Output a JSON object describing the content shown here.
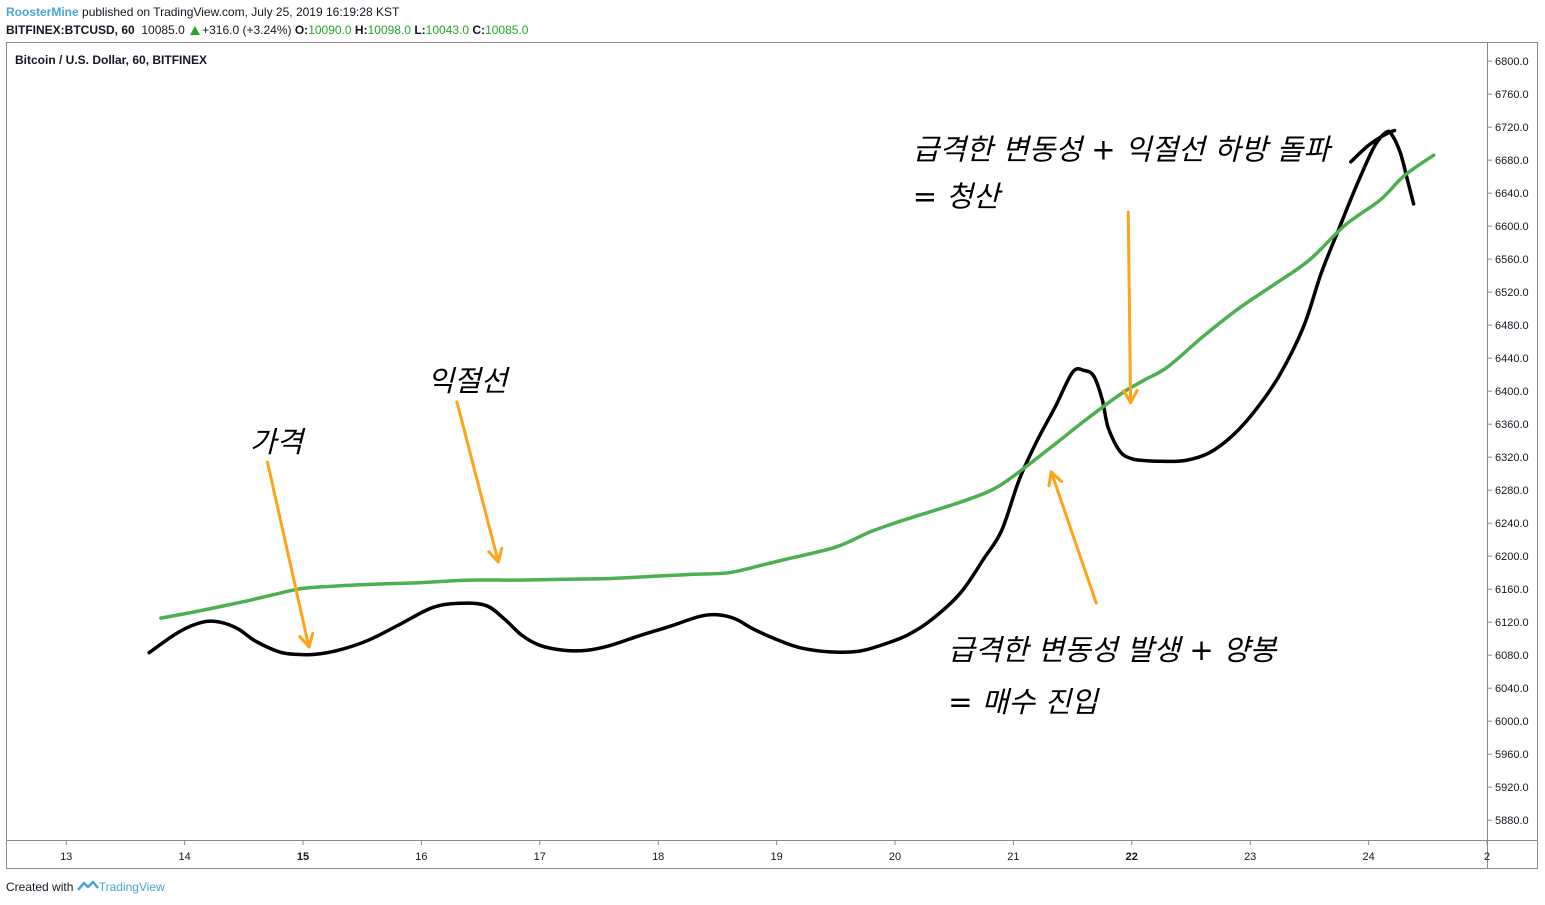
{
  "header": {
    "author": "RoosterMine",
    "published": "published on TradingView.com, July 25, 2019 16:19:28 KST",
    "symbol": "BITFINEX:BTCUSD, 60",
    "last": "10085.0",
    "change": "+316.0 (+3.24%)",
    "o_label": "O:",
    "o_value": "10090.0",
    "h_label": "H:",
    "h_value": "10098.0",
    "l_label": "L:",
    "l_value": "10043.0",
    "c_label": "C:",
    "c_value": "10085.0"
  },
  "chart_title": "Bitcoin / U.S. Dollar, 60, BITFINEX",
  "footer": {
    "created_with": "Created with",
    "brand": "TradingView"
  },
  "colors": {
    "price_line": "#000000",
    "profit_line": "#4caf50",
    "arrow": "#ffa31a",
    "axis_text": "#131722"
  },
  "chart_data": {
    "type": "line",
    "xlabel": "",
    "ylabel": "",
    "x_ticks": [
      "13",
      "14",
      "15",
      "16",
      "17",
      "18",
      "19",
      "20",
      "21",
      "22",
      "23",
      "24",
      "2"
    ],
    "x_ticks_bold": [
      "15",
      "22"
    ],
    "y_ticks": [
      "6800.0",
      "6760.0",
      "6720.0",
      "6680.0",
      "6640.0",
      "6600.0",
      "6560.0",
      "6520.0",
      "6480.0",
      "6440.0",
      "6400.0",
      "6360.0",
      "6320.0",
      "6280.0",
      "6240.0",
      "6200.0",
      "6160.0",
      "6120.0",
      "6080.0",
      "6040.0",
      "6000.0",
      "5960.0",
      "5920.0",
      "5880.0"
    ],
    "xlim": [
      12.5,
      25.0
    ],
    "ylim": [
      5856,
      6822
    ],
    "series": [
      {
        "name": "",
        "color": "#000000",
        "x": [
          13.7,
          13.95,
          14.15,
          14.3,
          14.45,
          14.6,
          14.8,
          14.95,
          15.1,
          15.3,
          15.55,
          15.8,
          16.1,
          16.35,
          16.55,
          16.7,
          16.85,
          17.0,
          17.2,
          17.4,
          17.6,
          17.85,
          18.1,
          18.35,
          18.5,
          18.65,
          18.8,
          19.0,
          19.2,
          19.45,
          19.7,
          19.9,
          20.1,
          20.3,
          20.55,
          20.75,
          20.9,
          21.05,
          21.2,
          21.35,
          21.5,
          21.6,
          21.68,
          21.75,
          21.8,
          21.9,
          22.0,
          22.1,
          22.25,
          22.45,
          22.65,
          22.85,
          23.05,
          23.25,
          23.45,
          23.6,
          23.75,
          23.9,
          24.05,
          24.15,
          24.2,
          24.27,
          24.33,
          24.38
        ],
        "y": [
          6083,
          6108,
          6120,
          6120,
          6112,
          6097,
          6084,
          6081,
          6081,
          6086,
          6098,
          6116,
          6138,
          6143,
          6140,
          6124,
          6104,
          6092,
          6086,
          6086,
          6092,
          6104,
          6115,
          6127,
          6129,
          6124,
          6112,
          6099,
          6089,
          6084,
          6085,
          6093,
          6104,
          6122,
          6155,
          6197,
          6231,
          6293,
          6340,
          6380,
          6423,
          6425,
          6418,
          6390,
          6356,
          6327,
          6318,
          6316,
          6315,
          6316,
          6325,
          6346,
          6378,
          6420,
          6478,
          6543,
          6597,
          6650,
          6697,
          6714,
          6710,
          6688,
          6655,
          6627
        ]
      },
      {
        "name": "",
        "color": "#000000",
        "x": [
          23.85,
          24.0,
          24.15,
          24.22
        ],
        "y": [
          6678,
          6698,
          6712,
          6716
        ]
      },
      {
        "name": "",
        "color": "#4caf50",
        "x": [
          13.8,
          14.1,
          14.5,
          14.8,
          15.0,
          15.3,
          15.6,
          16.0,
          16.4,
          16.8,
          17.2,
          17.6,
          18.0,
          18.3,
          18.6,
          18.9,
          19.1,
          19.5,
          19.8,
          20.1,
          20.5,
          20.8,
          21.0,
          21.3,
          21.6,
          21.9,
          22.1,
          22.3,
          22.6,
          22.9,
          23.2,
          23.5,
          23.8,
          24.1,
          24.3,
          24.55
        ],
        "y": [
          6125,
          6133,
          6145,
          6155,
          6161,
          6164,
          6166,
          6168,
          6171,
          6171,
          6172,
          6173,
          6176,
          6178,
          6180,
          6190,
          6197,
          6211,
          6230,
          6245,
          6263,
          6279,
          6297,
          6330,
          6364,
          6396,
          6413,
          6429,
          6466,
          6500,
          6529,
          6559,
          6601,
          6632,
          6661,
          6686
        ]
      }
    ],
    "annotations": [
      {
        "text": "가격",
        "tx": 14.55,
        "ty": 6326
      },
      {
        "text": "익절선",
        "tx": 16.05,
        "ty": 6400
      },
      {
        "text": "급격한 변동성 + 익절선 하방 돌파",
        "tx": 20.15,
        "ty": 6681
      },
      {
        "text": "= 청산",
        "tx": 20.15,
        "ty": 6624
      },
      {
        "text": "급격한 변동성 발생 + 양봉",
        "tx": 20.45,
        "ty": 6074
      },
      {
        "text": "= 매수 진입",
        "tx": 20.45,
        "ty": 6011
      }
    ],
    "arrows": [
      {
        "x1": 14.7,
        "y1": 6314,
        "x2": 15.05,
        "y2": 6090
      },
      {
        "x1": 16.3,
        "y1": 6387,
        "x2": 16.65,
        "y2": 6193
      },
      {
        "x1": 21.97,
        "y1": 6617,
        "x2": 21.99,
        "y2": 6386
      },
      {
        "x1": 21.7,
        "y1": 6143,
        "x2": 21.32,
        "y2": 6302
      }
    ]
  }
}
